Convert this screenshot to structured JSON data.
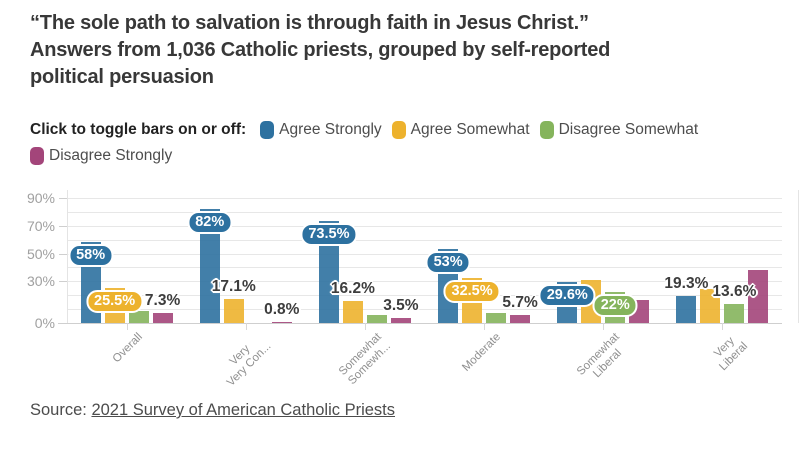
{
  "header": {
    "title_lines": [
      "“The sole path to salvation is through faith in Jesus Christ.”",
      "Answers from 1,036 Catholic priests, grouped by self-reported",
      "political persuasion"
    ]
  },
  "legend": {
    "intro": "Click to toggle bars on or off:",
    "items": [
      {
        "label": "Agree Strongly",
        "color": "#2d71a0"
      },
      {
        "label": "Agree Somewhat",
        "color": "#edb22d"
      },
      {
        "label": "Disagree Somewhat",
        "color": "#85b45c"
      },
      {
        "label": "Disagree Strongly",
        "color": "#a3457a"
      }
    ]
  },
  "chart_data": {
    "type": "bar",
    "title": "“The sole path to salvation is through faith in Jesus Christ.” Answers from 1,036 Catholic priests, grouped by self-reported political persuasion",
    "categories_display": [
      {
        "lines": [
          "Overall"
        ]
      },
      {
        "lines": [
          "Very",
          "Very Con..."
        ]
      },
      {
        "lines": [
          "Somewhat",
          "Somewh..."
        ]
      },
      {
        "lines": [
          "Moderate"
        ]
      },
      {
        "lines": [
          "Somewhat",
          "Liberal"
        ]
      },
      {
        "lines": [
          "Very",
          "Liberal"
        ]
      }
    ],
    "series": [
      {
        "name": "Agree Strongly",
        "color": "#2d71a0",
        "values": [
          58,
          82,
          73.5,
          53,
          29.6,
          19.3
        ],
        "labels": [
          "58%",
          "82%",
          "73.5%",
          "53%",
          "29.6%",
          "19.3%"
        ],
        "label_styles": [
          "bubble",
          "bubble",
          "bubble",
          "bubble",
          "bubble",
          "plain"
        ]
      },
      {
        "name": "Agree Somewhat",
        "color": "#edb22d",
        "values": [
          25.5,
          17.1,
          16.2,
          32.5,
          31,
          24.5
        ],
        "labels": [
          "25.5%",
          "17.1%",
          "16.2%",
          "32.5%",
          null,
          null
        ],
        "label_styles": [
          "bubble",
          "plain",
          "plain",
          "bubble",
          null,
          null
        ]
      },
      {
        "name": "Disagree Somewhat",
        "color": "#85b45c",
        "values": [
          9,
          0,
          6,
          7.5,
          22,
          13.6
        ],
        "labels": [
          null,
          null,
          null,
          null,
          "22%",
          "13.6%"
        ],
        "label_styles": [
          null,
          null,
          null,
          null,
          "bubble",
          "plain"
        ]
      },
      {
        "name": "Disagree Strongly",
        "color": "#a3457a",
        "values": [
          7.3,
          0.8,
          3.5,
          5.7,
          16.5,
          38.5
        ],
        "labels": [
          "7.3%",
          "0.8%",
          "3.5%",
          "5.7%",
          null,
          null
        ],
        "label_styles": [
          "plain",
          "plain",
          "plain",
          "plain",
          null,
          null
        ]
      }
    ],
    "y_axis": {
      "max": 90,
      "grid_step": 10,
      "labeled_ticks": [
        {
          "value": 90,
          "label": "90%"
        },
        {
          "value": 70,
          "label": "70%"
        },
        {
          "value": 50,
          "label": "50%"
        },
        {
          "value": 30,
          "label": "30%"
        },
        {
          "value": 0,
          "label": "0%"
        }
      ]
    },
    "grid": "horizontal",
    "legend_position": "top"
  },
  "source": {
    "prefix": "Source: ",
    "link_text": "2021 Survey of American Catholic Priests"
  }
}
